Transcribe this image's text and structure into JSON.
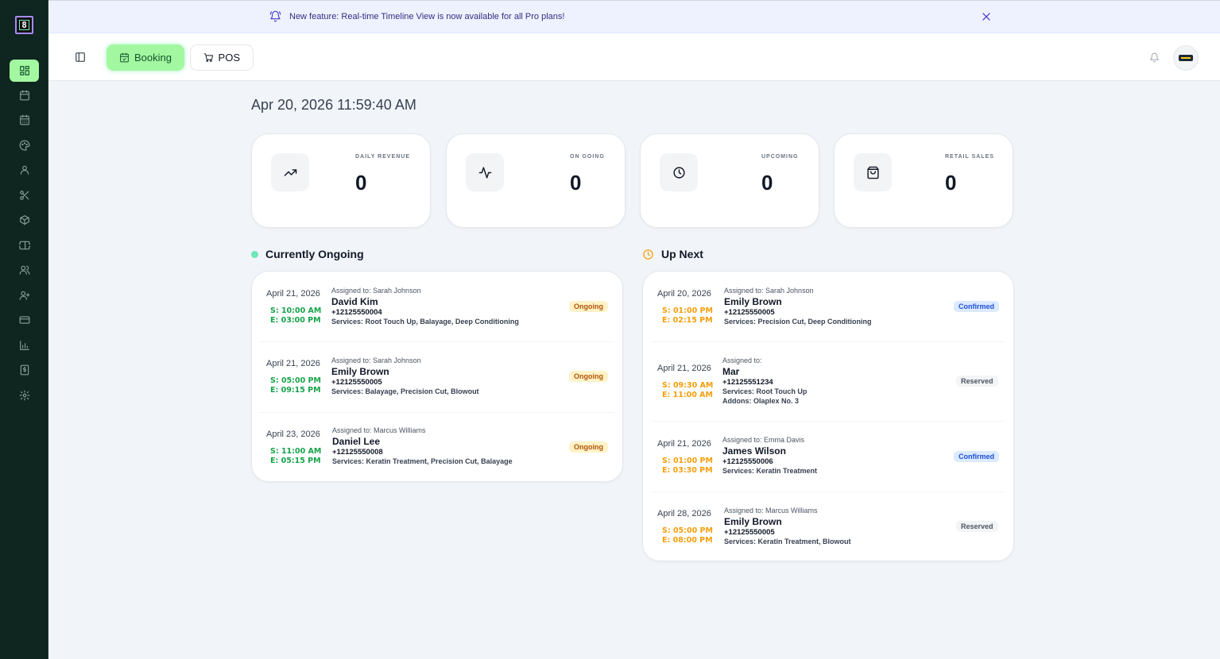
{
  "app": {
    "logo_text": "8"
  },
  "sidebar": {
    "items": [
      {
        "name": "dashboard",
        "icon": "dashboard-icon",
        "active": true
      },
      {
        "name": "calendar",
        "icon": "calendar-icon"
      },
      {
        "name": "schedule",
        "icon": "calendar-days-icon"
      },
      {
        "name": "palette",
        "icon": "palette-icon"
      },
      {
        "name": "user",
        "icon": "user-icon"
      },
      {
        "name": "services",
        "icon": "scissors-icon"
      },
      {
        "name": "products",
        "icon": "package-icon"
      },
      {
        "name": "tickets",
        "icon": "ticket-icon"
      },
      {
        "name": "team",
        "icon": "users-icon"
      },
      {
        "name": "add-user",
        "icon": "user-plus-icon"
      },
      {
        "name": "payments",
        "icon": "credit-card-icon"
      },
      {
        "name": "reports",
        "icon": "bar-chart-icon"
      },
      {
        "name": "invoices",
        "icon": "receipt-icon"
      },
      {
        "name": "settings",
        "icon": "gear-icon"
      }
    ]
  },
  "banner": {
    "text": "New feature: Real-time Timeline View is now available for all Pro plans!"
  },
  "topbar": {
    "booking_label": "Booking",
    "pos_label": "POS"
  },
  "datetime": "Apr 20, 2026 11:59:40 AM",
  "stats": [
    {
      "label": "DAILY REVENUE",
      "value": "0",
      "icon": "trending-up-icon"
    },
    {
      "label": "ON GOING",
      "value": "0",
      "icon": "activity-icon"
    },
    {
      "label": "UPCOMING",
      "value": "0",
      "icon": "clock-icon"
    },
    {
      "label": "RETAIL SALES",
      "value": "0",
      "icon": "shopping-bag-icon"
    }
  ],
  "ongoing": {
    "title": "Currently Ongoing",
    "items": [
      {
        "date": "April 21, 2026",
        "start": "S: 10:00 AM",
        "end": "E: 03:00 PM",
        "assigned": "Assigned to: Sarah Johnson",
        "name": "David Kim",
        "phone": "+12125550004",
        "services": "Services: Root Touch Up, Balayage, Deep Conditioning",
        "status": "Ongoing"
      },
      {
        "date": "April 21, 2026",
        "start": "S: 05:00 PM",
        "end": "E: 09:15 PM",
        "assigned": "Assigned to: Sarah Johnson",
        "name": "Emily Brown",
        "phone": "+12125550005",
        "services": "Services: Balayage, Precision Cut, Blowout",
        "status": "Ongoing"
      },
      {
        "date": "April 23, 2026",
        "start": "S: 11:00 AM",
        "end": "E: 05:15 PM",
        "assigned": "Assigned to: Marcus Williams",
        "name": "Daniel Lee",
        "phone": "+12125550008",
        "services": "Services: Keratin Treatment, Precision Cut, Balayage",
        "status": "Ongoing"
      }
    ]
  },
  "upnext": {
    "title": "Up Next",
    "items": [
      {
        "date": "April 20, 2026",
        "start": "S: 01:00 PM",
        "end": "E: 02:15 PM",
        "assigned": "Assigned to: Sarah Johnson",
        "name": "Emily Brown",
        "phone": "+12125550005",
        "services": "Services: Precision Cut, Deep Conditioning",
        "status": "Confirmed"
      },
      {
        "date": "April 21, 2026",
        "start": "S: 09:30 AM",
        "end": "E: 11:00 AM",
        "assigned": "Assigned to:",
        "name": "Mar",
        "phone": "+12125551234",
        "services": "Services: Root Touch Up",
        "addons": "Addons: Olaplex No. 3",
        "status": "Reserved"
      },
      {
        "date": "April 21, 2026",
        "start": "S: 01:00 PM",
        "end": "E: 03:30 PM",
        "assigned": "Assigned to: Emma Davis",
        "name": "James Wilson",
        "phone": "+12125550006",
        "services": "Services: Keratin Treatment",
        "status": "Confirmed"
      },
      {
        "date": "April 28, 2026",
        "start": "S: 05:00 PM",
        "end": "E: 08:00 PM",
        "assigned": "Assigned to: Marcus Williams",
        "name": "Emily Brown",
        "phone": "+12125550005",
        "services": "Services: Keratin Treatment, Blowout",
        "status": "Reserved"
      }
    ]
  },
  "colors": {
    "accent": "#a3f7a0",
    "sidebar_bg": "#0e2520",
    "ongoing_badge": "#fef3c7",
    "confirmed_badge": "#dbeafe",
    "reserved_badge": "#f3f4f6"
  }
}
